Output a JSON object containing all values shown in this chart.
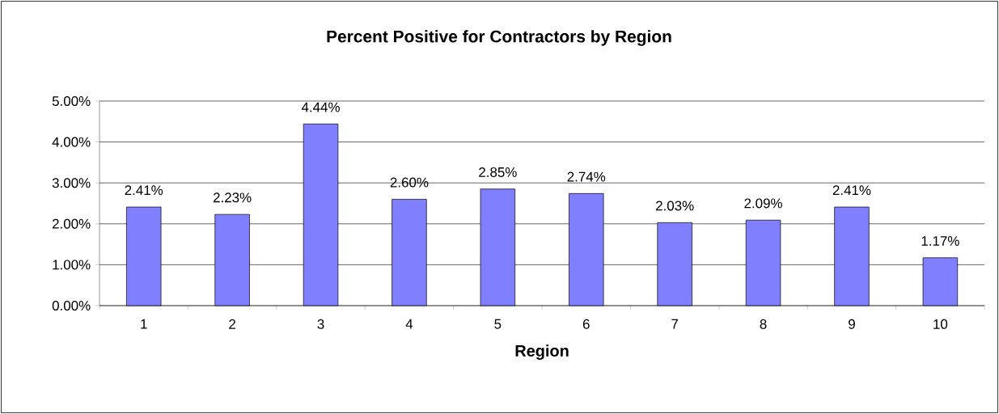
{
  "chart_data": {
    "type": "bar",
    "title": "Percent Positive for Contractors by Region",
    "xlabel": "Region",
    "categories": [
      "1",
      "2",
      "3",
      "4",
      "5",
      "6",
      "7",
      "8",
      "9",
      "10"
    ],
    "values": [
      2.41,
      2.23,
      4.44,
      2.6,
      2.85,
      2.74,
      2.03,
      2.09,
      2.41,
      1.17
    ],
    "color": "#8080ff",
    "value_labels": [
      "2.41%",
      "2.23%",
      "4.44%",
      "2.60%",
      "2.85%",
      "2.74%",
      "2.03%",
      "2.09%",
      "2.41%",
      "1.17%"
    ],
    "ylim": [
      0,
      5
    ],
    "yticks": [
      {
        "value": 0,
        "label": "0.00%"
      },
      {
        "value": 1,
        "label": "1.00%"
      },
      {
        "value": 2,
        "label": "2.00%"
      },
      {
        "value": 3,
        "label": "3.00%"
      },
      {
        "value": 4,
        "label": "4.00%"
      },
      {
        "value": 5,
        "label": "5.00%"
      }
    ],
    "grid": "y"
  }
}
